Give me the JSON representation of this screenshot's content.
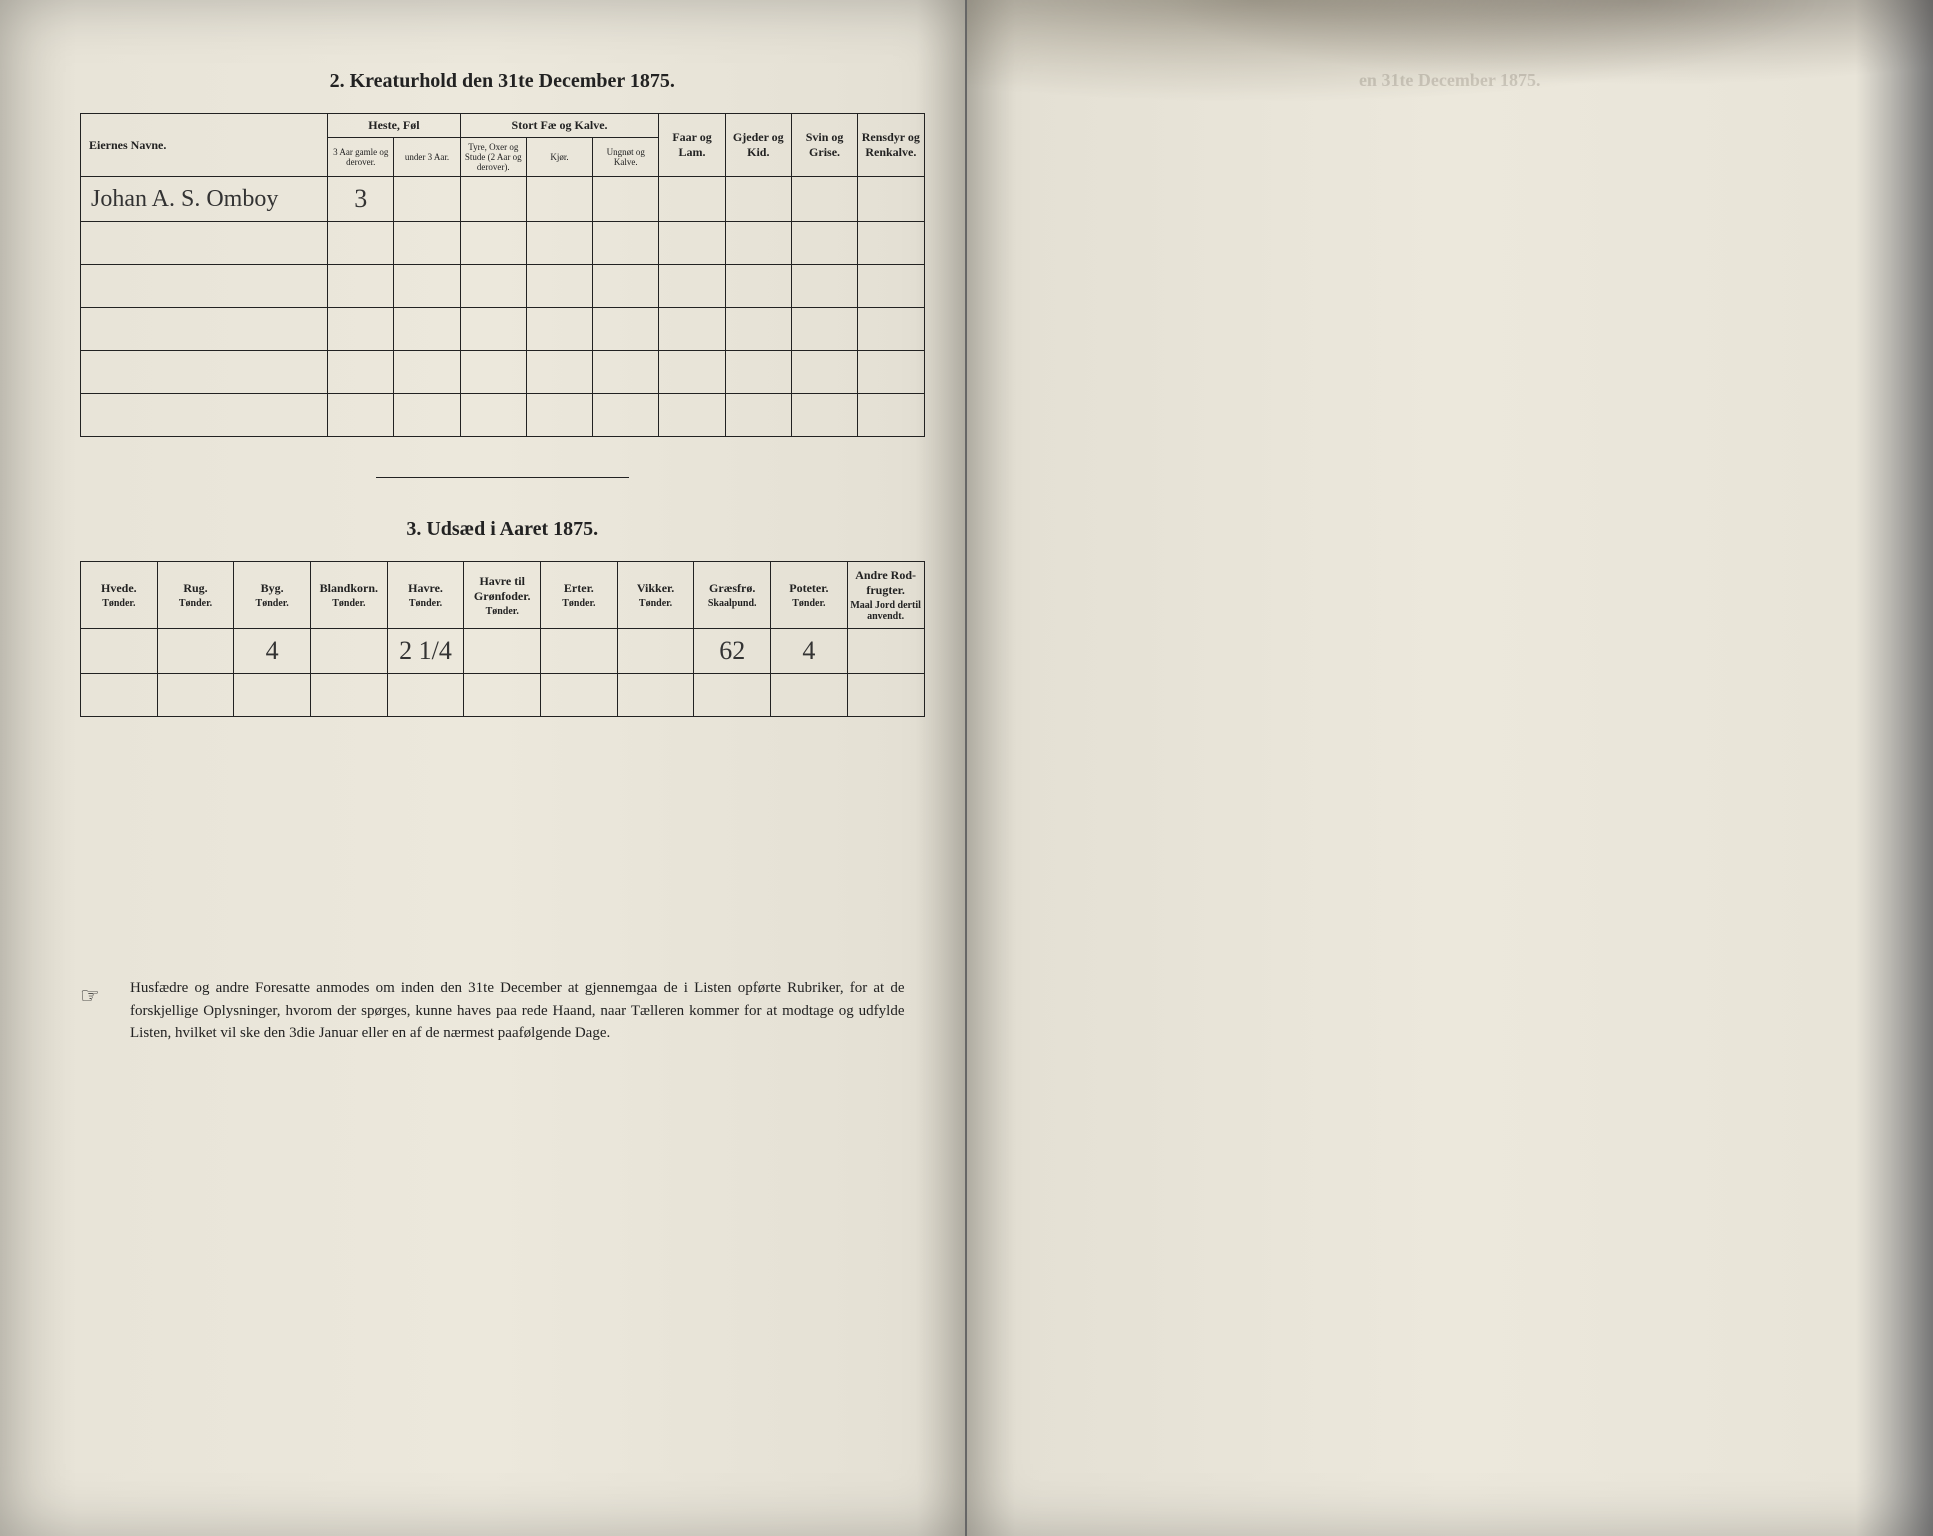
{
  "table1": {
    "title": "2.  Kreaturhold den 31te December 1875.",
    "headers": {
      "owner": "Eiernes Navne.",
      "heste": "Heste, Føl",
      "heste_sub1": "3 Aar gamle og derover.",
      "heste_sub2": "under 3 Aar.",
      "stort": "Stort Fæ og Kalve.",
      "stort_sub1": "Tyre, Oxer og Stude (2 Aar og derover).",
      "stort_sub2": "Kjør.",
      "stort_sub3": "Ungnøt og Kalve.",
      "faar": "Faar og Lam.",
      "gjeder": "Gjeder og Kid.",
      "svin": "Svin og Grise.",
      "ren": "Rensdyr og Renkalve."
    },
    "row": {
      "owner": "Johan A. S. Omboy",
      "heste_1": "3"
    }
  },
  "table2": {
    "title": "3.  Udsæd i Aaret 1875.",
    "cols": [
      {
        "h": "Hvede.",
        "u": "Tønder."
      },
      {
        "h": "Rug.",
        "u": "Tønder."
      },
      {
        "h": "Byg.",
        "u": "Tønder."
      },
      {
        "h": "Blandkorn.",
        "u": "Tønder."
      },
      {
        "h": "Havre.",
        "u": "Tønder."
      },
      {
        "h": "Havre til Grønfoder.",
        "u": "Tønder."
      },
      {
        "h": "Erter.",
        "u": "Tønder."
      },
      {
        "h": "Vikker.",
        "u": "Tønder."
      },
      {
        "h": "Græsfrø.",
        "u": "Skaalpund."
      },
      {
        "h": "Poteter.",
        "u": "Tønder."
      },
      {
        "h": "Andre Rod-frugter.",
        "u": "Maal Jord dertil anvendt."
      }
    ],
    "row": {
      "byg": "4",
      "havre": "2 1/4",
      "graesfro": "62",
      "poteter": "4"
    }
  },
  "footer": "Husfædre og andre Foresatte anmodes om inden den 31te December at gjennemgaa de i Listen opførte Rubriker, for at de forskjellige Oplysninger, hvorom der spørges, kunne haves paa rede Haand, naar Tælleren kommer for at modtage og udfylde Listen, hvilket vil ske den 3die Januar eller en af de nærmest paafølgende Dage.",
  "right_faint": "en 31te December 1875.",
  "colors": {
    "page_bg": "#e8e4d8",
    "ink": "#222222",
    "handwriting": "#333333",
    "dark_bg": "#1a1a1a"
  }
}
